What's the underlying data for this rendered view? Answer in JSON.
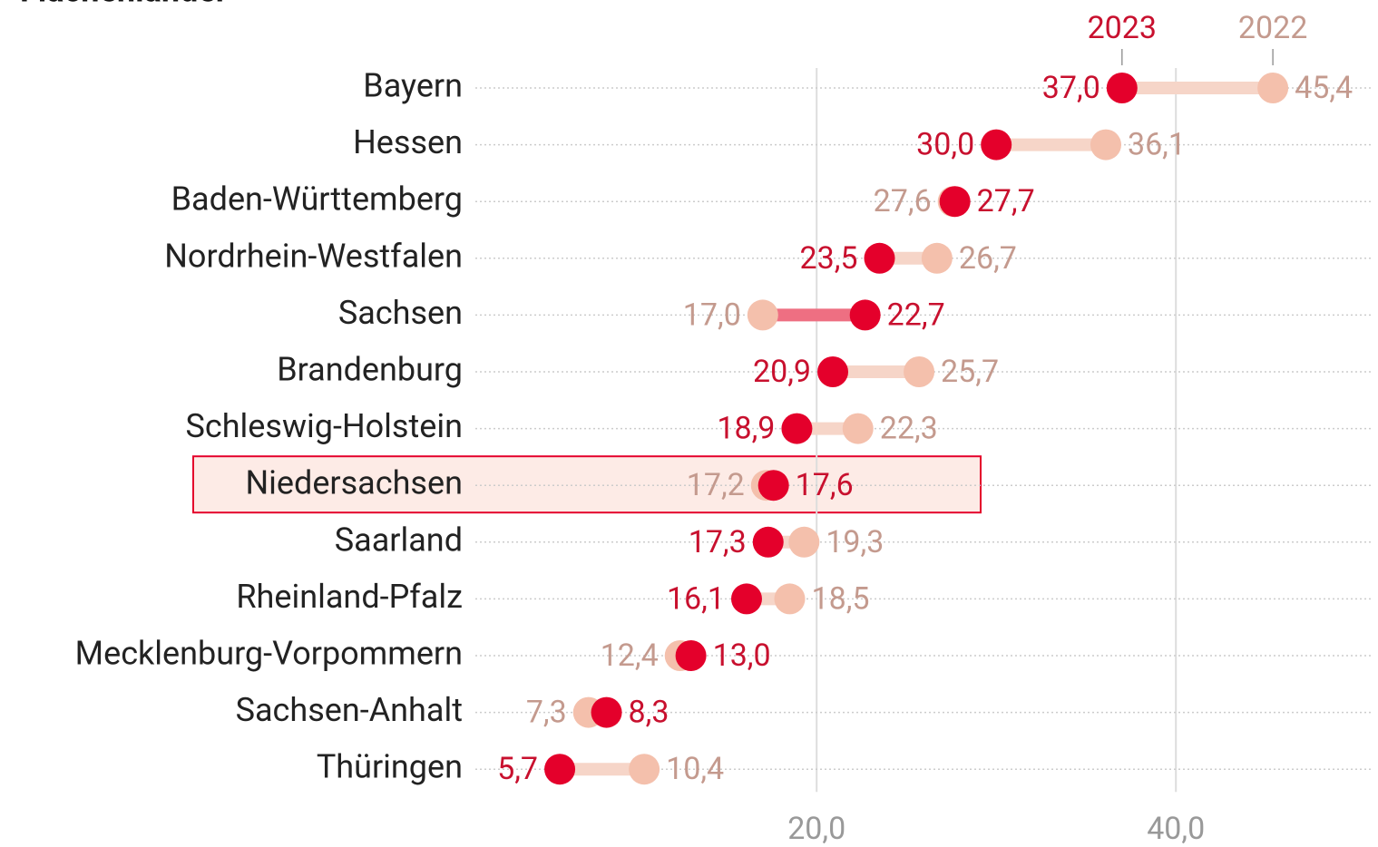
{
  "chart_data": {
    "type": "dumbbell",
    "title": "Flächenländer",
    "categories": [
      "Bayern",
      "Hessen",
      "Baden-Württemberg",
      "Nordrhein-Westfalen",
      "Sachsen",
      "Brandenburg",
      "Schleswig-Holstein",
      "Niedersachsen",
      "Saarland",
      "Rheinland-Pfalz",
      "Mecklenburg-Vorpommern",
      "Sachsen-Anhalt",
      "Thüringen"
    ],
    "series": [
      {
        "name": "2023",
        "color": "#e4002b",
        "values": [
          37.0,
          30.0,
          27.7,
          23.5,
          22.7,
          20.9,
          18.9,
          17.6,
          17.3,
          16.1,
          13.0,
          8.3,
          5.7
        ],
        "value_labels": [
          "37,0",
          "30,0",
          "27,7",
          "23,5",
          "22,7",
          "20,9",
          "18,9",
          "17,6",
          "17,3",
          "16,1",
          "13,0",
          "8,3",
          "5,7"
        ]
      },
      {
        "name": "2022",
        "color": "#f4c0ac",
        "values": [
          45.4,
          36.1,
          27.6,
          26.7,
          17.0,
          25.7,
          22.3,
          17.2,
          19.3,
          18.5,
          12.4,
          7.3,
          10.4
        ],
        "value_labels": [
          "45,4",
          "36,1",
          "27,6",
          "26,7",
          "17,0",
          "25,7",
          "22,3",
          "17,2",
          "19,3",
          "18,5",
          "12,4",
          "7,3",
          "10,4"
        ]
      }
    ],
    "xlim": [
      1,
      51
    ],
    "xticks": [
      {
        "value": 20,
        "label": "20,0"
      },
      {
        "value": 40,
        "label": "40,0"
      }
    ],
    "grid": true,
    "highlight": 7
  }
}
